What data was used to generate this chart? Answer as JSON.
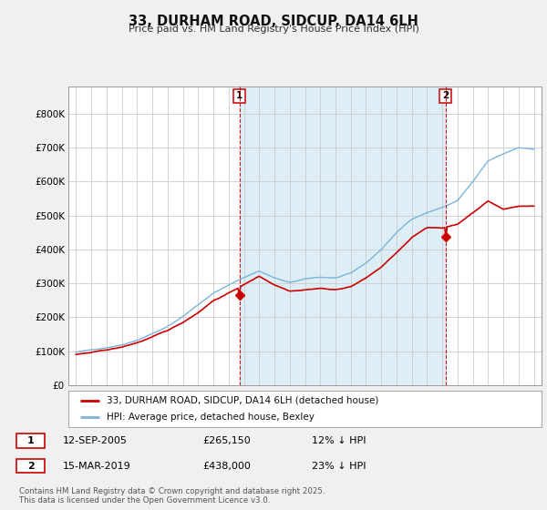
{
  "title": "33, DURHAM ROAD, SIDCUP, DA14 6LH",
  "subtitle": "Price paid vs. HM Land Registry's House Price Index (HPI)",
  "red_label": "33, DURHAM ROAD, SIDCUP, DA14 6LH (detached house)",
  "blue_label": "HPI: Average price, detached house, Bexley",
  "annotation1_date": "12-SEP-2005",
  "annotation1_price": "£265,150",
  "annotation1_pct": "12% ↓ HPI",
  "annotation1_year": 2005.71,
  "annotation1_value": 265150,
  "annotation2_date": "15-MAR-2019",
  "annotation2_price": "£438,000",
  "annotation2_pct": "23% ↓ HPI",
  "annotation2_year": 2019.21,
  "annotation2_value": 438000,
  "footer": "Contains HM Land Registry data © Crown copyright and database right 2025.\nThis data is licensed under the Open Government Licence v3.0.",
  "ylim": [
    0,
    880000
  ],
  "yticks": [
    0,
    100000,
    200000,
    300000,
    400000,
    500000,
    600000,
    700000,
    800000
  ],
  "ytick_labels": [
    "£0",
    "£100K",
    "£200K",
    "£300K",
    "£400K",
    "£500K",
    "£600K",
    "£700K",
    "£800K"
  ],
  "red_color": "#cc0000",
  "blue_color": "#7ab4d8",
  "blue_fill_color": "#ddeef7",
  "background_color": "#f0f0f0",
  "plot_background": "#ffffff"
}
